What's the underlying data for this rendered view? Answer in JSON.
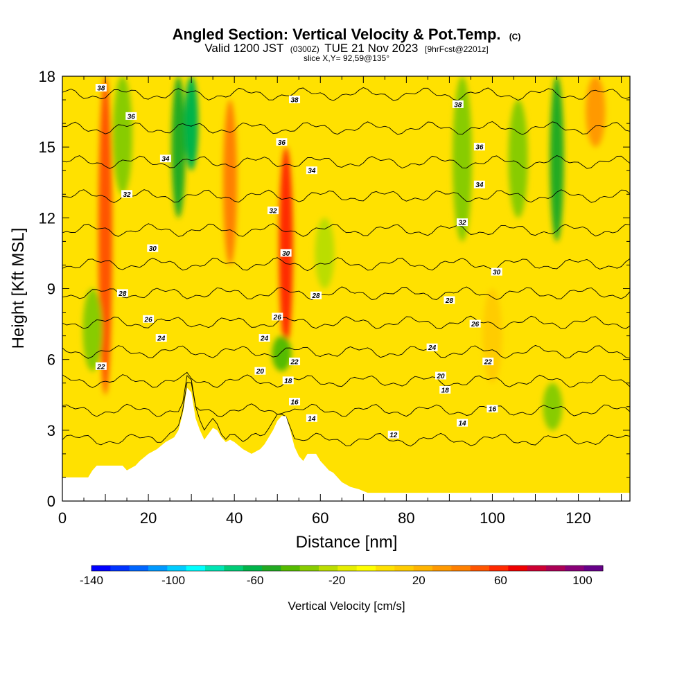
{
  "chart_data": {
    "type": "heatmap",
    "title": {
      "main": "Angled Section: Vertical Velocity & Pot.Temp.",
      "main_unit": "(C)",
      "valid_prefix": "Valid 1200 JST",
      "valid_zulu": "(0300Z)",
      "valid_date": "TUE 21 Nov 2023",
      "forecast": "[9hrFcst@2201z]",
      "slice": "slice X,Y= 92,59@135°"
    },
    "xlabel": "Distance [nm]",
    "ylabel": "Height [Kft MSL]",
    "xlim": [
      0,
      132
    ],
    "ylim": [
      0,
      18
    ],
    "x_ticks": [
      0,
      20,
      40,
      60,
      80,
      100,
      120
    ],
    "y_ticks": [
      0,
      3,
      6,
      9,
      12,
      15,
      18
    ],
    "background_color": "#ffe100",
    "colorbar": {
      "label": "Vertical Velocity [cm/s]",
      "min": -140,
      "max": 110,
      "step": 10,
      "tick_labels": [
        -140,
        -100,
        -60,
        -20,
        20,
        60,
        100
      ],
      "colors": [
        "#0000ff",
        "#0033ff",
        "#0066ff",
        "#0099ff",
        "#00ccff",
        "#00ffff",
        "#00e5b4",
        "#00cc77",
        "#00b44a",
        "#22aa22",
        "#55bb00",
        "#88cc00",
        "#bbdd00",
        "#e6ee00",
        "#ffff00",
        "#ffe100",
        "#ffcc00",
        "#ffb400",
        "#ff9900",
        "#ff8000",
        "#ff5500",
        "#ff2a00",
        "#ee0000",
        "#cc0033",
        "#aa0055",
        "#880077",
        "#660088"
      ]
    },
    "terrain_kft": [
      [
        0,
        1.0
      ],
      [
        2,
        1.0
      ],
      [
        4,
        1.0
      ],
      [
        6,
        1.0
      ],
      [
        7,
        1.3
      ],
      [
        8,
        1.5
      ],
      [
        10,
        1.5
      ],
      [
        12,
        1.5
      ],
      [
        14,
        1.5
      ],
      [
        15,
        1.3
      ],
      [
        17,
        1.5
      ],
      [
        18,
        1.7
      ],
      [
        20,
        2.0
      ],
      [
        22,
        2.2
      ],
      [
        24,
        2.5
      ],
      [
        26,
        2.7
      ],
      [
        27,
        3.0
      ],
      [
        28,
        3.7
      ],
      [
        29,
        4.8
      ],
      [
        30,
        4.6
      ],
      [
        31,
        3.5
      ],
      [
        32,
        3.0
      ],
      [
        33,
        2.6
      ],
      [
        35,
        3.1
      ],
      [
        36,
        3.0
      ],
      [
        37,
        2.7
      ],
      [
        38,
        2.5
      ],
      [
        39,
        2.6
      ],
      [
        40,
        2.5
      ],
      [
        42,
        2.2
      ],
      [
        44,
        2.0
      ],
      [
        46,
        2.2
      ],
      [
        47,
        2.4
      ],
      [
        48,
        2.7
      ],
      [
        49,
        3.0
      ],
      [
        50,
        3.4
      ],
      [
        51,
        3.6
      ],
      [
        52,
        3.6
      ],
      [
        53,
        3.0
      ],
      [
        54,
        2.3
      ],
      [
        55,
        1.9
      ],
      [
        56,
        1.7
      ],
      [
        57,
        2.0
      ],
      [
        59,
        2.0
      ],
      [
        60,
        1.7
      ],
      [
        61,
        1.5
      ],
      [
        62,
        1.3
      ],
      [
        63,
        1.2
      ],
      [
        64,
        1.0
      ],
      [
        65,
        0.8
      ],
      [
        67,
        0.6
      ],
      [
        69,
        0.5
      ],
      [
        71,
        0.35
      ],
      [
        132,
        0.35
      ]
    ],
    "vertical_velocity_features": [
      {
        "x": 10,
        "z_min": 4.5,
        "z_max": 18,
        "value": 60
      },
      {
        "x": 14,
        "z_min": 13,
        "z_max": 18,
        "value": -25
      },
      {
        "x": 7,
        "z_min": 5.5,
        "z_max": 9,
        "value": -30
      },
      {
        "x": 27,
        "z_min": 12,
        "z_max": 18,
        "value": -50
      },
      {
        "x": 30,
        "z_min": 14,
        "z_max": 18,
        "value": -60
      },
      {
        "x": 39,
        "z_min": 10,
        "z_max": 17,
        "value": 50
      },
      {
        "x": 52,
        "z_min": 6.5,
        "z_max": 15,
        "value": 70
      },
      {
        "x": 51,
        "z_min": 5.5,
        "z_max": 7,
        "value": -40
      },
      {
        "x": 61,
        "z_min": 9,
        "z_max": 12,
        "value": -20
      },
      {
        "x": 93,
        "z_min": 11,
        "z_max": 18,
        "value": -25
      },
      {
        "x": 106,
        "z_min": 12,
        "z_max": 17,
        "value": -30
      },
      {
        "x": 115,
        "z_min": 11,
        "z_max": 18,
        "value": -50
      },
      {
        "x": 114,
        "z_min": 3,
        "z_max": 5,
        "value": -30
      },
      {
        "x": 124,
        "z_min": 15,
        "z_max": 18,
        "value": 40
      },
      {
        "x": 100,
        "z_min": 5,
        "z_max": 9,
        "value": 20
      },
      {
        "x": 75,
        "z_min": 0.5,
        "z_max": 2.5,
        "value": 15
      }
    ],
    "theta_contours": [
      12,
      14,
      16,
      18,
      20,
      22,
      24,
      26,
      28,
      30,
      32,
      34,
      36,
      38
    ],
    "theta_contour_labels": [
      {
        "value": "38",
        "x": 9,
        "z": 17.5
      },
      {
        "value": "36",
        "x": 16,
        "z": 16.3
      },
      {
        "value": "34",
        "x": 24,
        "z": 14.5
      },
      {
        "value": "32",
        "x": 15,
        "z": 13.0
      },
      {
        "value": "30",
        "x": 21,
        "z": 10.7
      },
      {
        "value": "28",
        "x": 14,
        "z": 8.8
      },
      {
        "value": "26",
        "x": 20,
        "z": 7.7
      },
      {
        "value": "24",
        "x": 23,
        "z": 6.9
      },
      {
        "value": "22",
        "x": 9,
        "z": 5.7
      },
      {
        "value": "38",
        "x": 54,
        "z": 17.0
      },
      {
        "value": "36",
        "x": 51,
        "z": 15.2
      },
      {
        "value": "34",
        "x": 58,
        "z": 14.0
      },
      {
        "value": "32",
        "x": 49,
        "z": 12.3
      },
      {
        "value": "30",
        "x": 52,
        "z": 10.5
      },
      {
        "value": "28",
        "x": 59,
        "z": 8.7
      },
      {
        "value": "26",
        "x": 50,
        "z": 7.8
      },
      {
        "value": "24",
        "x": 47,
        "z": 6.9
      },
      {
        "value": "22",
        "x": 54,
        "z": 5.9
      },
      {
        "value": "20",
        "x": 46,
        "z": 5.5
      },
      {
        "value": "18",
        "x": 52.5,
        "z": 5.1
      },
      {
        "value": "16",
        "x": 54,
        "z": 4.2
      },
      {
        "value": "14",
        "x": 58,
        "z": 3.5
      },
      {
        "value": "38",
        "x": 92,
        "z": 16.8
      },
      {
        "value": "36",
        "x": 97,
        "z": 15.0
      },
      {
        "value": "34",
        "x": 97,
        "z": 13.4
      },
      {
        "value": "32",
        "x": 93,
        "z": 11.8
      },
      {
        "value": "30",
        "x": 101,
        "z": 9.7
      },
      {
        "value": "28",
        "x": 90,
        "z": 8.5
      },
      {
        "value": "26",
        "x": 96,
        "z": 7.5
      },
      {
        "value": "24",
        "x": 86,
        "z": 6.5
      },
      {
        "value": "22",
        "x": 99,
        "z": 5.9
      },
      {
        "value": "20",
        "x": 88,
        "z": 5.3
      },
      {
        "value": "18",
        "x": 89,
        "z": 4.7
      },
      {
        "value": "16",
        "x": 100,
        "z": 3.9
      },
      {
        "value": "14",
        "x": 93,
        "z": 3.3
      },
      {
        "value": "12",
        "x": 77,
        "z": 2.8
      }
    ],
    "grid": false,
    "legend_position": "bottom"
  }
}
